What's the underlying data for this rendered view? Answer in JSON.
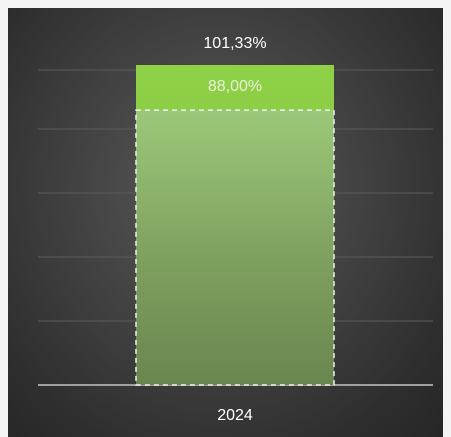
{
  "chart_data": {
    "type": "bar",
    "categories": [
      "2024"
    ],
    "series": [
      {
        "values": [
          101.33
        ],
        "label": "101,33%",
        "color": "#8cc63f"
      },
      {
        "values": [
          88.0
        ],
        "label": "88,00%",
        "color": "#9ccc7a"
      }
    ],
    "ylim": [
      0,
      101.33
    ],
    "grid": true,
    "legend": "none",
    "colors": {
      "background": "#3c3c3c",
      "gridline": "#5c5c5c",
      "axis": "#a0a0a0",
      "text": "#ffffff",
      "inner_label": "#e6f1d8"
    }
  }
}
